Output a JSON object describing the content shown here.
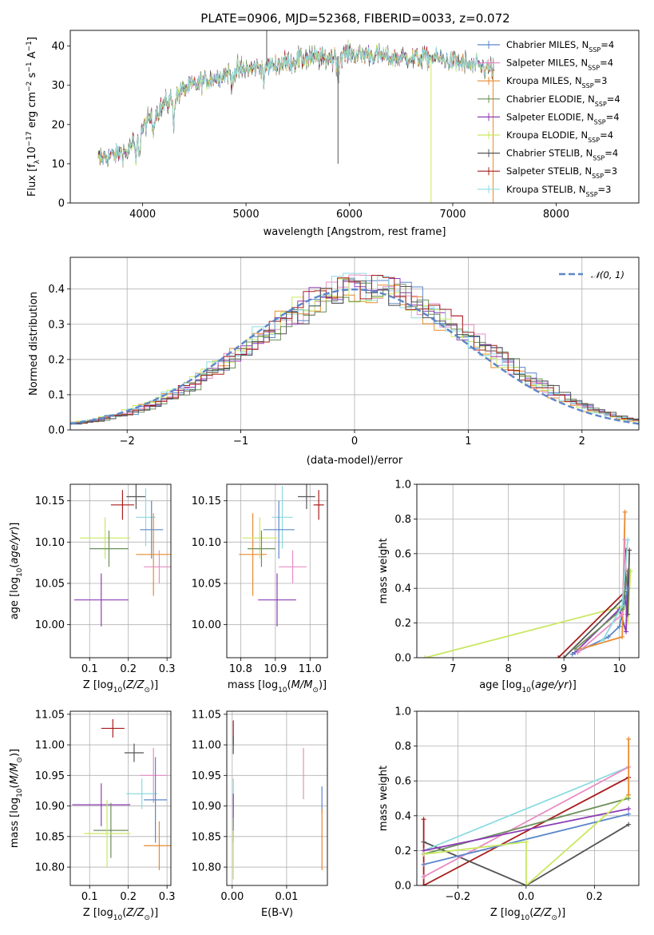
{
  "figure": {
    "title": "PLATE=0906, MJD=52368, FIBERID=0033, z=0.072"
  },
  "colors": {
    "Chabrier MILES": "#5b86c9",
    "Salpeter MILES": "#e88cc4",
    "Kroupa MILES": "#e88a2e",
    "Chabrier ELODIE": "#6b8f5a",
    "Salpeter ELODIE": "#8c3db5",
    "Kroupa ELODIE": "#c9e860",
    "Chabrier STELIB": "#555555",
    "Salpeter STELIB": "#a81c1c",
    "Kroupa STELIB": "#8adbe0"
  },
  "chart_data": [
    {
      "id": "spectrum",
      "type": "line",
      "title": "PLATE=0906, MJD=52368, FIBERID=0033, z=0.072",
      "xlabel": "wavelength [Angstrom, rest frame]",
      "ylabel": "Flux [f_λ10^-17 erg cm^-2 s^-1 A^-1]",
      "xlim": [
        3300,
        8800
      ],
      "ylim": [
        0,
        44
      ],
      "xticks": [
        4000,
        5000,
        6000,
        7000,
        8000
      ],
      "yticks": [
        0,
        10,
        20,
        30,
        40
      ],
      "grid": false,
      "legend_position": "top-right",
      "legend": [
        {
          "name": "Chabrier MILES",
          "nssp": "4"
        },
        {
          "name": "Salpeter MILES",
          "nssp": "4"
        },
        {
          "name": "Kroupa MILES",
          "nssp": "3"
        },
        {
          "name": "Chabrier ELODIE",
          "nssp": "4"
        },
        {
          "name": "Salpeter ELODIE",
          "nssp": "4"
        },
        {
          "name": "Kroupa ELODIE",
          "nssp": "4"
        },
        {
          "name": "Chabrier STELIB",
          "nssp": "4"
        },
        {
          "name": "Salpeter STELIB",
          "nssp": "3"
        },
        {
          "name": "Kroupa STELIB",
          "nssp": "3"
        }
      ],
      "continuum_x": [
        3570,
        3700,
        3850,
        3950,
        4050,
        4200,
        4400,
        4600,
        4800,
        5000,
        5200,
        5400,
        5600,
        5800,
        6000,
        6200,
        6400,
        6600,
        6800,
        7000,
        7200,
        7400
      ],
      "continuum_y": [
        11,
        12,
        13,
        17,
        21,
        25,
        29,
        31,
        33,
        34,
        35,
        36,
        37,
        37,
        38,
        38,
        37,
        37,
        37,
        36,
        35,
        34
      ],
      "absorption_features": [
        {
          "x": 3934,
          "depth": 6
        },
        {
          "x": 3969,
          "depth": 5
        },
        {
          "x": 4102,
          "depth": 4
        },
        {
          "x": 4300,
          "depth": 6
        },
        {
          "x": 4861,
          "depth": 3
        },
        {
          "x": 5175,
          "depth": 4
        },
        {
          "x": 5893,
          "depth": 6
        }
      ],
      "spikes": [
        {
          "x": 5200,
          "to": 44
        },
        {
          "x": 5890,
          "to": 10
        },
        {
          "x": 6790,
          "to": 0
        },
        {
          "x": 7390,
          "to": 0
        }
      ]
    },
    {
      "id": "residuals",
      "type": "line",
      "xlabel": "(data-model)/error",
      "ylabel": "Normed distribution",
      "xlim": [
        -2.5,
        2.5
      ],
      "ylim": [
        0,
        0.49
      ],
      "xticks": [
        -2,
        -1,
        0,
        1,
        2
      ],
      "yticks": [
        0.0,
        0.1,
        0.2,
        0.3,
        0.4
      ],
      "grid": true,
      "legend_position": "top-right",
      "legend": [
        {
          "name": "𝒩(0, 1)"
        }
      ],
      "bin_width": 0.1,
      "curve": "gaussian, mean 0, sigma 1"
    },
    {
      "id": "age-vs-Z",
      "type": "scatter",
      "xlabel": "Z [log10(Z/Z☉)]",
      "ylabel": "age  [log10(age/yr)]",
      "xlim": [
        0.05,
        0.31
      ],
      "ylim": [
        9.96,
        10.17
      ],
      "xticks": [
        0.1,
        0.2,
        0.3
      ],
      "yticks": [
        10.0,
        10.05,
        10.1,
        10.15
      ],
      "grid": true,
      "points": [
        {
          "series": "Salpeter STELIB",
          "x": 0.185,
          "y": 10.145,
          "xerr": 0.03,
          "yerr": 0.018
        },
        {
          "series": "Chabrier STELIB",
          "x": 0.22,
          "y": 10.155,
          "xerr": 0.025,
          "yerr": 0.015
        },
        {
          "series": "Kroupa STELIB",
          "x": 0.245,
          "y": 10.13,
          "xerr": 0.025,
          "yerr": 0.035
        },
        {
          "series": "Chabrier MILES",
          "x": 0.26,
          "y": 10.115,
          "xerr": 0.03,
          "yerr": 0.035
        },
        {
          "series": "Kroupa MILES",
          "x": 0.265,
          "y": 10.085,
          "xerr": 0.045,
          "yerr": 0.05
        },
        {
          "series": "Salpeter MILES",
          "x": 0.28,
          "y": 10.07,
          "xerr": 0.04,
          "yerr": 0.02
        },
        {
          "series": "Kroupa ELODIE",
          "x": 0.14,
          "y": 10.105,
          "xerr": 0.065,
          "yerr": 0.025
        },
        {
          "series": "Chabrier ELODIE",
          "x": 0.15,
          "y": 10.092,
          "xerr": 0.05,
          "yerr": 0.022
        },
        {
          "series": "Salpeter ELODIE",
          "x": 0.13,
          "y": 10.03,
          "xerr": 0.07,
          "yerr": 0.032
        }
      ]
    },
    {
      "id": "age-vs-mass",
      "type": "scatter",
      "xlabel": "mass [log10(M/M☉)]",
      "ylabel": "",
      "xlim": [
        10.76,
        11.05
      ],
      "ylim": [
        9.96,
        10.17
      ],
      "xticks": [
        10.8,
        10.9,
        11.0
      ],
      "yticks": [
        10.0,
        10.05,
        10.1,
        10.15
      ],
      "grid": true,
      "points": [
        {
          "series": "Salpeter STELIB",
          "x": 11.025,
          "y": 10.145,
          "xerr": 0.015,
          "yerr": 0.018
        },
        {
          "series": "Chabrier STELIB",
          "x": 10.99,
          "y": 10.155,
          "xerr": 0.025,
          "yerr": 0.015
        },
        {
          "series": "Kroupa STELIB",
          "x": 10.92,
          "y": 10.13,
          "xerr": 0.03,
          "yerr": 0.038
        },
        {
          "series": "Chabrier MILES",
          "x": 10.91,
          "y": 10.115,
          "xerr": 0.045,
          "yerr": 0.035
        },
        {
          "series": "Kroupa MILES",
          "x": 10.835,
          "y": 10.085,
          "xerr": 0.04,
          "yerr": 0.05
        },
        {
          "series": "Salpeter MILES",
          "x": 10.95,
          "y": 10.07,
          "xerr": 0.04,
          "yerr": 0.02
        },
        {
          "series": "Kroupa ELODIE",
          "x": 10.855,
          "y": 10.105,
          "xerr": 0.05,
          "yerr": 0.025
        },
        {
          "series": "Chabrier ELODIE",
          "x": 10.86,
          "y": 10.092,
          "xerr": 0.04,
          "yerr": 0.022
        },
        {
          "series": "Salpeter ELODIE",
          "x": 10.905,
          "y": 10.03,
          "xerr": 0.055,
          "yerr": 0.032
        }
      ]
    },
    {
      "id": "mass-weight-vs-age",
      "type": "line",
      "xlabel": "age  [log10(age/yr)]",
      "ylabel": "mass weight",
      "xlim": [
        6.35,
        10.35
      ],
      "ylim": [
        0,
        1
      ],
      "xticks": [
        7,
        8,
        9,
        10
      ],
      "yticks": [
        0.0,
        0.2,
        0.4,
        0.6,
        0.8,
        1.0
      ],
      "grid": true,
      "series": [
        {
          "name": "Kroupa ELODIE",
          "x": [
            6.5,
            10.1,
            10.15,
            10.2
          ],
          "y": [
            0.0,
            0.3,
            0.2,
            0.5
          ]
        },
        {
          "name": "Salpeter STELIB",
          "x": [
            8.9,
            10.1,
            10.12
          ],
          "y": [
            0.0,
            0.38,
            0.62
          ]
        },
        {
          "name": "Chabrier STELIB",
          "x": [
            9.0,
            10.1,
            10.15,
            10.18
          ],
          "y": [
            0.0,
            0.35,
            0.25,
            0.62
          ]
        },
        {
          "name": "Salpeter ELODIE",
          "x": [
            9.2,
            10.0,
            10.12,
            10.15
          ],
          "y": [
            0.03,
            0.28,
            0.15,
            0.5
          ]
        },
        {
          "name": "Chabrier MILES",
          "x": [
            9.15,
            9.8,
            10.0,
            10.15
          ],
          "y": [
            0.02,
            0.12,
            0.18,
            0.4
          ]
        },
        {
          "name": "Kroupa MILES",
          "x": [
            9.3,
            10.05,
            10.1
          ],
          "y": [
            0.05,
            0.12,
            0.84
          ]
        },
        {
          "name": "Salpeter MILES",
          "x": [
            9.25,
            10.05,
            10.1
          ],
          "y": [
            0.03,
            0.25,
            0.68
          ]
        },
        {
          "name": "Chabrier ELODIE",
          "x": [
            9.2,
            10.05,
            10.15
          ],
          "y": [
            0.05,
            0.28,
            0.5
          ]
        },
        {
          "name": "Kroupa STELIB",
          "x": [
            9.7,
            10.05,
            10.15
          ],
          "y": [
            0.1,
            0.3,
            0.68
          ]
        }
      ]
    },
    {
      "id": "mass-vs-Z",
      "type": "scatter",
      "xlabel": "Z [log10(Z/Z☉)]",
      "ylabel": "mass [log10(M/M☉)]",
      "xlim": [
        0.05,
        0.31
      ],
      "ylim": [
        10.77,
        11.055
      ],
      "xticks": [
        0.1,
        0.2,
        0.3
      ],
      "yticks": [
        10.8,
        10.85,
        10.9,
        10.95,
        11.0,
        11.05
      ],
      "grid": true,
      "points": [
        {
          "series": "Salpeter STELIB",
          "x": 0.16,
          "y": 11.027,
          "xerr": 0.03,
          "yerr": 0.015
        },
        {
          "series": "Chabrier STELIB",
          "x": 0.215,
          "y": 10.987,
          "xerr": 0.025,
          "yerr": 0.015
        },
        {
          "series": "Salpeter MILES",
          "x": 0.265,
          "y": 10.95,
          "xerr": 0.035,
          "yerr": 0.045
        },
        {
          "series": "Kroupa STELIB",
          "x": 0.235,
          "y": 10.92,
          "xerr": 0.04,
          "yerr": 0.025
        },
        {
          "series": "Chabrier MILES",
          "x": 0.27,
          "y": 10.91,
          "xerr": 0.03,
          "yerr": 0.07
        },
        {
          "series": "Salpeter ELODIE",
          "x": 0.13,
          "y": 10.902,
          "xerr": 0.075,
          "yerr": 0.035
        },
        {
          "series": "Chabrier ELODIE",
          "x": 0.155,
          "y": 10.86,
          "xerr": 0.045,
          "yerr": 0.045
        },
        {
          "series": "Kroupa ELODIE",
          "x": 0.145,
          "y": 10.855,
          "xerr": 0.06,
          "yerr": 0.055
        },
        {
          "series": "Kroupa MILES",
          "x": 0.28,
          "y": 10.835,
          "xerr": 0.04,
          "yerr": 0.04
        }
      ]
    },
    {
      "id": "mass-vs-EBV",
      "type": "scatter",
      "xlabel": "E(B-V)",
      "ylabel": "",
      "xlim": [
        -0.001,
        0.0175
      ],
      "ylim": [
        10.77,
        11.055
      ],
      "xticks": [
        0.0,
        0.01
      ],
      "yticks": [
        10.8,
        10.85,
        10.9,
        10.95,
        11.0,
        11.05
      ],
      "grid": true,
      "points": [
        {
          "series": "Salpeter STELIB",
          "x": 0.0002,
          "y": 11.02,
          "xerr": 0,
          "yerr": 0.02
        },
        {
          "series": "Chabrier STELIB",
          "x": 0.0002,
          "y": 11.0,
          "xerr": 0,
          "yerr": 0.015
        },
        {
          "series": "Salpeter MILES",
          "x": 0.0131,
          "y": 10.953,
          "xerr": 0,
          "yerr": 0.042
        },
        {
          "series": "Kroupa STELIB",
          "x": 0.0002,
          "y": 10.92,
          "xerr": 0,
          "yerr": 0.025
        },
        {
          "series": "Chabrier MILES",
          "x": 0.0165,
          "y": 10.91,
          "xerr": 0,
          "yerr": 0.022
        },
        {
          "series": "Salpeter ELODIE",
          "x": 0.0002,
          "y": 10.9,
          "xerr": 0,
          "yerr": 0.02
        },
        {
          "series": "Chabrier ELODIE",
          "x": 0.0002,
          "y": 10.86,
          "xerr": 0,
          "yerr": 0.02
        },
        {
          "series": "Kroupa ELODIE",
          "x": 0.0002,
          "y": 10.82,
          "xerr": 0,
          "yerr": 0.04
        },
        {
          "series": "Kroupa MILES",
          "x": 0.0165,
          "y": 10.845,
          "xerr": 0,
          "yerr": 0.05
        }
      ]
    },
    {
      "id": "mass-weight-vs-Z",
      "type": "line",
      "xlabel": "Z [log10(Z/Z☉)]",
      "ylabel": "mass weight",
      "xlim": [
        -0.32,
        0.33
      ],
      "ylim": [
        0,
        1
      ],
      "xticks": [
        -0.2,
        0.0,
        0.2
      ],
      "yticks": [
        0.0,
        0.2,
        0.4,
        0.6,
        0.8,
        1.0
      ],
      "grid": true,
      "series": [
        {
          "name": "Salpeter STELIB",
          "x": [
            -0.3,
            -0.3,
            0.3
          ],
          "y": [
            0.38,
            0.0,
            0.62
          ]
        },
        {
          "name": "Chabrier STELIB",
          "x": [
            -0.3,
            0.0,
            0.3
          ],
          "y": [
            0.25,
            0.0,
            0.35
          ]
        },
        {
          "name": "Kroupa STELIB",
          "x": [
            -0.3,
            0.3
          ],
          "y": [
            0.2,
            0.68
          ]
        },
        {
          "name": "Salpeter MILES",
          "x": [
            -0.3,
            0.3
          ],
          "y": [
            0.05,
            0.68
          ]
        },
        {
          "name": "Chabrier ELODIE",
          "x": [
            -0.3,
            0.3
          ],
          "y": [
            0.18,
            0.5
          ]
        },
        {
          "name": "Salpeter ELODIE",
          "x": [
            -0.3,
            0.3
          ],
          "y": [
            0.2,
            0.44
          ]
        },
        {
          "name": "Chabrier MILES",
          "x": [
            -0.3,
            0.3
          ],
          "y": [
            0.12,
            0.41
          ]
        },
        {
          "name": "Kroupa ELODIE",
          "x": [
            -0.3,
            0.0,
            0.0,
            0.3
          ],
          "y": [
            0.18,
            0.25,
            0.0,
            0.52
          ]
        },
        {
          "name": "Kroupa MILES",
          "x": [
            0.3,
            0.3
          ],
          "y": [
            0.52,
            0.84
          ]
        }
      ]
    }
  ]
}
